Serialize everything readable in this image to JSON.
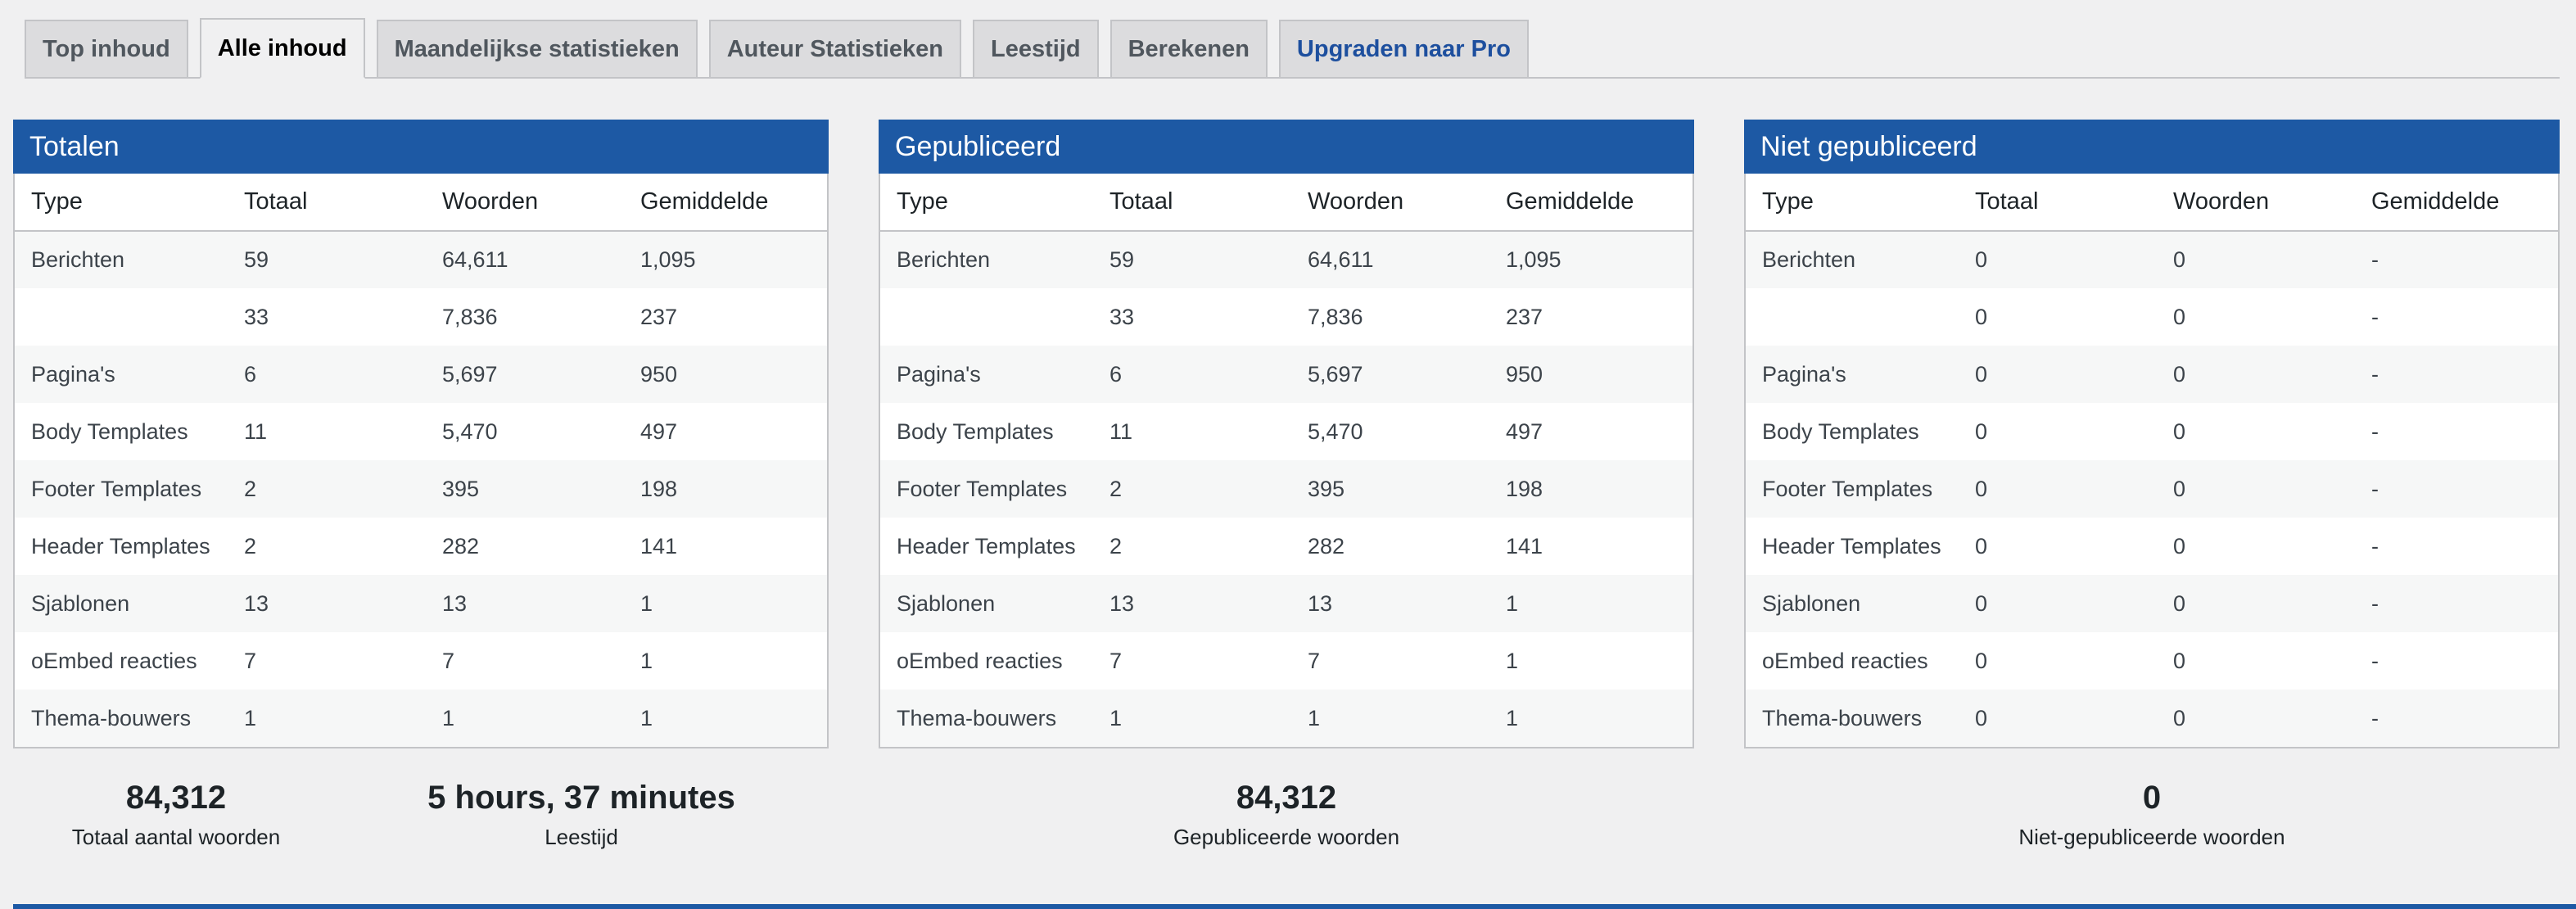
{
  "tabs": [
    {
      "label": "Top inhoud"
    },
    {
      "label": "Alle inhoud"
    },
    {
      "label": "Maandelijkse statistieken"
    },
    {
      "label": "Auteur Statistieken"
    },
    {
      "label": "Leestijd"
    },
    {
      "label": "Berekenen"
    },
    {
      "label": "Upgraden naar Pro"
    }
  ],
  "active_tab": "Alle inhoud",
  "panels": [
    {
      "title": "Totalen",
      "headers": [
        "Type",
        "Totaal",
        "Woorden",
        "Gemiddelde"
      ],
      "rows": [
        [
          "Berichten",
          "59",
          "64,611",
          "1,095"
        ],
        [
          "",
          "33",
          "7,836",
          "237"
        ],
        [
          "Pagina's",
          "6",
          "5,697",
          "950"
        ],
        [
          "Body Templates",
          "11",
          "5,470",
          "497"
        ],
        [
          "Footer Templates",
          "2",
          "395",
          "198"
        ],
        [
          "Header Templates",
          "2",
          "282",
          "141"
        ],
        [
          "Sjablonen",
          "13",
          "13",
          "1"
        ],
        [
          "oEmbed reacties",
          "7",
          "7",
          "1"
        ],
        [
          "Thema-bouwers",
          "1",
          "1",
          "1"
        ]
      ]
    },
    {
      "title": "Gepubliceerd",
      "headers": [
        "Type",
        "Totaal",
        "Woorden",
        "Gemiddelde"
      ],
      "rows": [
        [
          "Berichten",
          "59",
          "64,611",
          "1,095"
        ],
        [
          "",
          "33",
          "7,836",
          "237"
        ],
        [
          "Pagina's",
          "6",
          "5,697",
          "950"
        ],
        [
          "Body Templates",
          "11",
          "5,470",
          "497"
        ],
        [
          "Footer Templates",
          "2",
          "395",
          "198"
        ],
        [
          "Header Templates",
          "2",
          "282",
          "141"
        ],
        [
          "Sjablonen",
          "13",
          "13",
          "1"
        ],
        [
          "oEmbed reacties",
          "7",
          "7",
          "1"
        ],
        [
          "Thema-bouwers",
          "1",
          "1",
          "1"
        ]
      ]
    },
    {
      "title": "Niet gepubliceerd",
      "headers": [
        "Type",
        "Totaal",
        "Woorden",
        "Gemiddelde"
      ],
      "rows": [
        [
          "Berichten",
          "0",
          "0",
          "-"
        ],
        [
          "",
          "0",
          "0",
          "-"
        ],
        [
          "Pagina's",
          "0",
          "0",
          "-"
        ],
        [
          "Body Templates",
          "0",
          "0",
          "-"
        ],
        [
          "Footer Templates",
          "0",
          "0",
          "-"
        ],
        [
          "Header Templates",
          "0",
          "0",
          "-"
        ],
        [
          "Sjablonen",
          "0",
          "0",
          "-"
        ],
        [
          "oEmbed reacties",
          "0",
          "0",
          "-"
        ],
        [
          "Thema-bouwers",
          "0",
          "0",
          "-"
        ]
      ]
    }
  ],
  "summary": {
    "total_words": {
      "value": "84,312",
      "label": "Totaal aantal woorden"
    },
    "reading_time": {
      "value": "5 hours, 37 minutes",
      "label": "Leestijd"
    },
    "published_words": {
      "value": "84,312",
      "label": "Gepubliceerde woorden"
    },
    "unpublished_words": {
      "value": "0",
      "label": "Niet-gepubliceerde woorden"
    }
  },
  "colors": {
    "header_blue": "#1d59a4",
    "pro_link": "#1d4f9e",
    "background": "#f0f0f1"
  }
}
